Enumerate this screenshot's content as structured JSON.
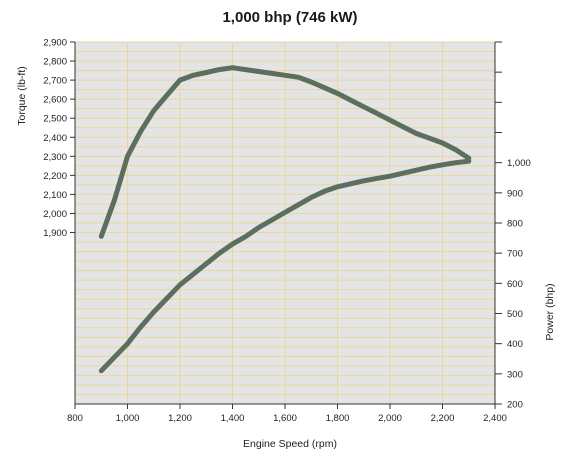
{
  "chart_data": {
    "type": "line",
    "title": "1,000 bhp (746 kW)",
    "xlabel": "Engine Speed (rpm)",
    "ylabel_left": "Torque (lb-ft)",
    "ylabel_right": "Power (bhp)",
    "xlim": [
      800,
      2400
    ],
    "x_ticks": [
      "800",
      "1,000",
      "1,200",
      "1,400",
      "1,600",
      "1,800",
      "2,000",
      "2,200",
      "2,400"
    ],
    "y_left_range": [
      1000,
      2900
    ],
    "y_left_ticks": [
      "1,900",
      "2,000",
      "2,100",
      "2,200",
      "2,300",
      "2,400",
      "2,500",
      "2,600",
      "2,700",
      "2,800",
      "2,900"
    ],
    "y_right_range": [
      200,
      1400
    ],
    "y_right_ticks": [
      "200",
      "300",
      "400",
      "500",
      "600",
      "700",
      "800",
      "900",
      "1,000"
    ],
    "grid": true,
    "line_color": "#5c6e5e",
    "background_color": "#e4e4e4",
    "grid_color": "#e8d7a0",
    "series": [
      {
        "axis": "left",
        "x": [
          900,
          950,
          1000,
          1050,
          1100,
          1150,
          1200,
          1250,
          1300,
          1350,
          1400,
          1450,
          1500,
          1550,
          1600,
          1650,
          1700,
          1750,
          1800,
          1850,
          1900,
          1950,
          2000,
          2050,
          2100,
          2150,
          2200,
          2250,
          2300
        ],
        "y": [
          1880,
          2070,
          2300,
          2430,
          2540,
          2620,
          2700,
          2725,
          2740,
          2755,
          2765,
          2755,
          2745,
          2735,
          2725,
          2715,
          2690,
          2660,
          2630,
          2595,
          2560,
          2525,
          2490,
          2455,
          2420,
          2395,
          2370,
          2335,
          2290
        ]
      },
      {
        "axis": "right",
        "x": [
          900,
          950,
          1000,
          1050,
          1100,
          1150,
          1200,
          1250,
          1300,
          1350,
          1400,
          1450,
          1500,
          1550,
          1600,
          1650,
          1700,
          1750,
          1800,
          1850,
          1900,
          1950,
          2000,
          2050,
          2100,
          2150,
          2200,
          2250,
          2300
        ],
        "y": [
          310,
          355,
          400,
          455,
          505,
          550,
          595,
          630,
          665,
          700,
          730,
          755,
          785,
          810,
          835,
          860,
          885,
          905,
          920,
          930,
          940,
          948,
          955,
          965,
          975,
          985,
          993,
          1000,
          1005
        ]
      }
    ]
  }
}
